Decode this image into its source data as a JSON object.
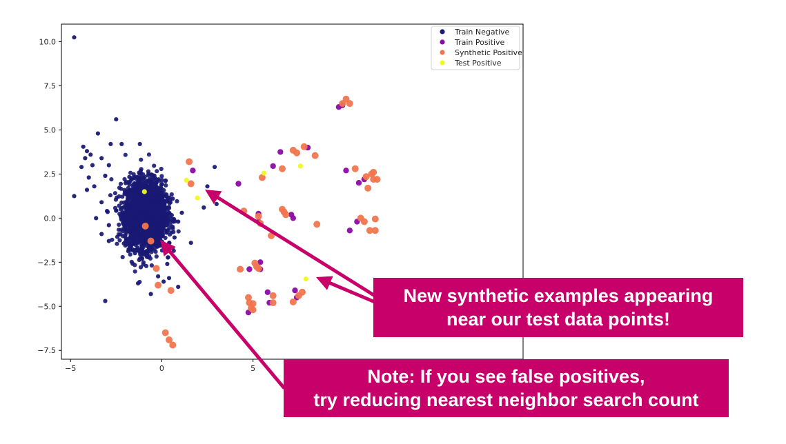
{
  "chart_data": {
    "type": "scatter",
    "xlim": [
      -5.5,
      19.8
    ],
    "ylim": [
      -8.0,
      11.0
    ],
    "x_ticks": [
      -5,
      0,
      5
    ],
    "y_ticks": [
      10.0,
      7.5,
      5.0,
      2.5,
      0.0,
      -2.5,
      -5.0,
      -7.5
    ],
    "x_tick_labels": [
      "−5",
      "0",
      "5"
    ],
    "y_tick_labels": [
      "10.0",
      "7.5",
      "5.0",
      "2.5",
      "0.0",
      "−2.5",
      "−5.0",
      "−7.5"
    ],
    "grid": false,
    "legend_position": "top-right",
    "series": [
      {
        "name": "Train Negative",
        "color": "#1a1a74",
        "note": "dense cluster of ~several thousand points centered near (-0.9, 0.2), spread roughly x:-2..0.5, y:-2..3",
        "cluster": {
          "cx": -0.9,
          "cy": 0.2,
          "sx": 0.55,
          "sy": 0.95,
          "n": 2600
        },
        "points": [
          [
            -4.8,
            10.25
          ],
          [
            -2.5,
            5.6
          ],
          [
            -3.5,
            4.8
          ],
          [
            -4.3,
            4.05
          ],
          [
            -4.1,
            3.8
          ],
          [
            -3.9,
            3.6
          ],
          [
            -4.2,
            3.4
          ],
          [
            -3.3,
            3.4
          ],
          [
            -3.8,
            3.0
          ],
          [
            -4.4,
            2.9
          ],
          [
            -2.9,
            3.0
          ],
          [
            -3.1,
            2.4
          ],
          [
            -4.0,
            2.3
          ],
          [
            -3.7,
            1.8
          ],
          [
            -4.1,
            1.6
          ],
          [
            -4.8,
            1.25
          ],
          [
            -3.3,
            0.9
          ],
          [
            -2.8,
            4.2
          ],
          [
            -2.2,
            4.2
          ],
          [
            -1.2,
            4.2
          ],
          [
            -3.6,
            0.0
          ],
          [
            -3.0,
            0.4
          ],
          [
            -2.9,
            -0.4
          ],
          [
            -3.3,
            -0.9
          ],
          [
            -2.9,
            -1.3
          ],
          [
            -1.3,
            -3.7
          ],
          [
            -0.6,
            -4.3
          ],
          [
            0.1,
            -3.6
          ],
          [
            0.4,
            -3.4
          ],
          [
            -3.1,
            -4.7
          ],
          [
            2.5,
            1.8
          ],
          [
            2.9,
            2.9
          ],
          [
            3.0,
            0.8
          ],
          [
            2.3,
            0.6
          ],
          [
            1.6,
            -1.4
          ],
          [
            0.9,
            -3.9
          ],
          [
            -0.2,
            -3.3
          ],
          [
            0.3,
            -2.6
          ],
          [
            0.7,
            -1.1
          ],
          [
            0.9,
            -0.2
          ],
          [
            1.1,
            0.3
          ],
          [
            0.6,
            1.1
          ],
          [
            -0.3,
            2.2
          ]
        ]
      },
      {
        "name": "Train Positive",
        "color": "#8b0aa5",
        "points": [
          [
            1.7,
            2.7
          ],
          [
            4.2,
            1.95
          ],
          [
            4.8,
            -2.9
          ],
          [
            4.75,
            -5.35
          ],
          [
            5.3,
            0.25
          ],
          [
            5.3,
            -0.2
          ],
          [
            5.4,
            -2.5
          ],
          [
            5.4,
            -2.9
          ],
          [
            5.8,
            -4.2
          ],
          [
            5.9,
            -4.8
          ],
          [
            6.1,
            2.95
          ],
          [
            6.5,
            3.75
          ],
          [
            7.1,
            0.2
          ],
          [
            7.2,
            0.0
          ],
          [
            7.3,
            -4.1
          ],
          [
            7.4,
            -4.5
          ],
          [
            8.0,
            4.0
          ],
          [
            9.7,
            6.3
          ],
          [
            9.9,
            6.4
          ],
          [
            10.1,
            2.7
          ],
          [
            10.3,
            -0.7
          ],
          [
            10.7,
            -0.2
          ],
          [
            10.8,
            2.0
          ],
          [
            11.1,
            2.2
          ]
        ]
      },
      {
        "name": "Synthetic Positive",
        "color": "#f07650",
        "points": [
          [
            -0.9,
            -0.45
          ],
          [
            -0.6,
            -1.3
          ],
          [
            -0.3,
            -2.85
          ],
          [
            -0.2,
            -3.8
          ],
          [
            0.5,
            -4.1
          ],
          [
            0.2,
            -6.5
          ],
          [
            0.4,
            -6.9
          ],
          [
            0.6,
            -7.2
          ],
          [
            1.5,
            3.2
          ],
          [
            1.6,
            1.95
          ],
          [
            4.5,
            0.4
          ],
          [
            4.3,
            -2.9
          ],
          [
            4.75,
            -4.5
          ],
          [
            4.8,
            -4.8
          ],
          [
            4.9,
            -5.1
          ],
          [
            5.0,
            -5.2
          ],
          [
            5.0,
            -4.85
          ],
          [
            5.1,
            -2.55
          ],
          [
            5.2,
            -2.75
          ],
          [
            5.3,
            -2.85
          ],
          [
            5.3,
            0.1
          ],
          [
            5.4,
            -0.3
          ],
          [
            5.5,
            2.3
          ],
          [
            6.0,
            -1.0
          ],
          [
            6.1,
            -4.4
          ],
          [
            6.1,
            -4.8
          ],
          [
            6.6,
            0.5
          ],
          [
            6.7,
            0.35
          ],
          [
            6.8,
            0.2
          ],
          [
            6.6,
            2.8
          ],
          [
            7.2,
            3.85
          ],
          [
            7.4,
            3.7
          ],
          [
            7.8,
            4.05
          ],
          [
            7.5,
            -4.4
          ],
          [
            7.2,
            -4.75
          ],
          [
            7.7,
            -4.2
          ],
          [
            8.4,
            3.55
          ],
          [
            8.5,
            -0.35
          ],
          [
            9.9,
            6.5
          ],
          [
            10.1,
            6.75
          ],
          [
            10.3,
            6.5
          ],
          [
            10.6,
            2.8
          ],
          [
            10.9,
            0.0
          ],
          [
            11.1,
            -0.2
          ],
          [
            11.2,
            2.35
          ],
          [
            11.3,
            1.7
          ],
          [
            11.5,
            2.5
          ],
          [
            11.6,
            2.6
          ],
          [
            11.6,
            2.2
          ],
          [
            11.8,
            2.2
          ],
          [
            11.7,
            -0.05
          ],
          [
            11.4,
            -0.7
          ],
          [
            11.7,
            -0.7
          ]
        ]
      },
      {
        "name": "Test Positive",
        "color": "#f0f921",
        "points": [
          [
            -0.95,
            1.5
          ],
          [
            1.35,
            2.15
          ],
          [
            1.95,
            1.15
          ],
          [
            5.6,
            2.55
          ],
          [
            7.6,
            2.95
          ],
          [
            7.9,
            -3.45
          ]
        ]
      }
    ]
  },
  "callouts": {
    "first_line1": "New synthetic examples appearing",
    "first_line2": "near our test data points!",
    "second_line1": "Note: If you see false positives,",
    "second_line2": "try reducing nearest neighbor search count"
  },
  "colors": {
    "callout_bg": "#c8006a",
    "arrow": "#c8006a",
    "text": "#ffffff"
  }
}
